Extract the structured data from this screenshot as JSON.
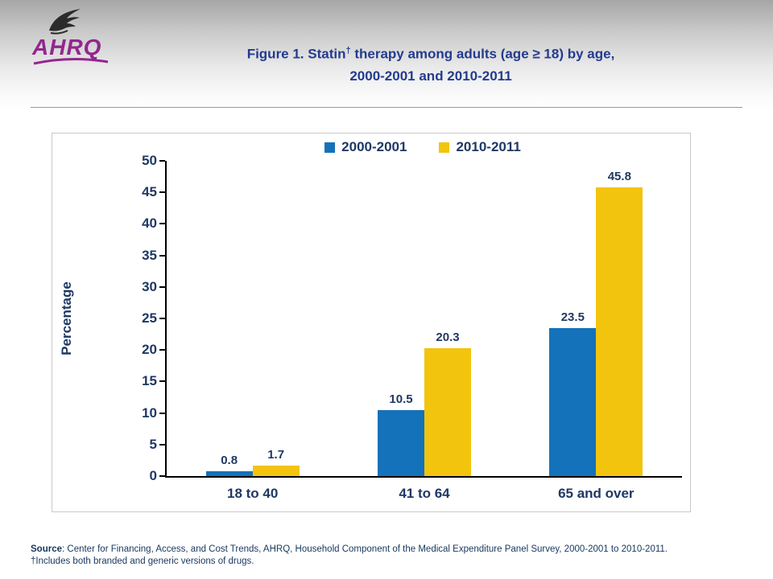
{
  "header": {
    "title_prefix": "Figure 1. Statin",
    "title_dagger": "†",
    "title_suffix": " therapy among adults (age ≥ 18) by age,",
    "title_line2": "2000-2001 and 2010-2011"
  },
  "logo": {
    "text": "AHRQ"
  },
  "chart_data": {
    "type": "bar",
    "title": "Figure 1. Statin† therapy among adults (age ≥ 18) by age, 2000-2001 and 2010-2011",
    "categories": [
      "18 to 40",
      "41 to 64",
      "65 and over"
    ],
    "series": [
      {
        "name": "2000-2001",
        "color": "#1472BA",
        "values": [
          0.8,
          10.5,
          23.5
        ]
      },
      {
        "name": "2010-2011",
        "color": "#F2C40D",
        "values": [
          1.7,
          20.3,
          45.8
        ]
      }
    ],
    "xlabel": "",
    "ylabel": "Percentage",
    "ylim": [
      0,
      50
    ],
    "ytick_step": 5,
    "legend_position": "top",
    "grid": false
  },
  "footer": {
    "source_label": "Source",
    "source_rest": ": Center for Financing, Access, and Cost Trends, AHRQ, Household Component of the Medical Expenditure Panel Survey, 2000-2001 to 2010-2011.",
    "note": "†Includes both branded and generic versions of drugs."
  },
  "colors": {
    "title": "#233B8F",
    "labels": "#1F3864",
    "footer": "#17365D",
    "logo": "#93268F",
    "series_blue": "#1472BA",
    "series_yellow": "#F2C40D"
  }
}
